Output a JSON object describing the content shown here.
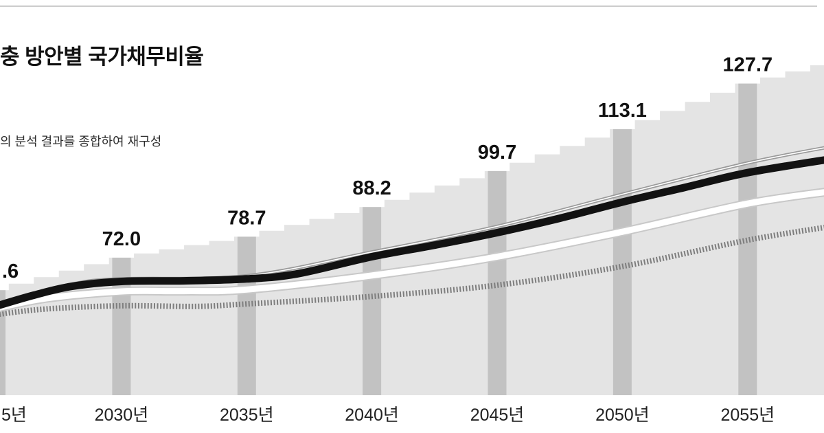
{
  "header": {
    "title": "충 방안별 국가채무비율",
    "source_note": "의 분석 결과를 종합하여 재구성"
  },
  "colors": {
    "background": "#ffffff",
    "top_rule": "#cccccc",
    "area_fill": "#e4e4e4",
    "bar_fill": "#c2c2c2",
    "line_black": "#121212",
    "line_white": "#ffffff",
    "line_white_edge": "#c8c8c8",
    "line_gray_thin": "#9a9a9a",
    "line_gray_hatched": "#7d7d7d",
    "value_label_text": "#111111",
    "axis_label_text": "#222222"
  },
  "chart_data": {
    "type": "area",
    "title": "충 방안별 국가채무비율",
    "xlabel": "",
    "ylabel": "",
    "grid": false,
    "xlim": [
      2025.15,
      2058.05
    ],
    "ylim": [
      28,
      154
    ],
    "x_tick_labels": [
      {
        "year": 2025,
        "label": "5년",
        "align": "left"
      },
      {
        "year": 2030,
        "label": "2030년"
      },
      {
        "year": 2035,
        "label": "2035년"
      },
      {
        "year": 2040,
        "label": "2040년"
      },
      {
        "year": 2045,
        "label": "2045년"
      },
      {
        "year": 2050,
        "label": "2050년"
      },
      {
        "year": 2055,
        "label": "2055년"
      }
    ],
    "value_labels": [
      {
        "year": 2025,
        "text": ".6",
        "value": 61.6,
        "align": "left"
      },
      {
        "year": 2030,
        "text": "72.0",
        "value": 72.0
      },
      {
        "year": 2035,
        "text": "78.7",
        "value": 78.7
      },
      {
        "year": 2040,
        "text": "88.2",
        "value": 88.2
      },
      {
        "year": 2045,
        "text": "99.7",
        "value": 99.7
      },
      {
        "year": 2050,
        "text": "113.1",
        "value": 113.1
      },
      {
        "year": 2055,
        "text": "127.7",
        "value": 127.7
      }
    ],
    "bars_at_years": [
      2025,
      2030,
      2035,
      2040,
      2045,
      2050,
      2055
    ],
    "series": [
      {
        "name": "stepped-area-top",
        "style": "stepped_area",
        "x": [
          2025,
          2030,
          2035,
          2040,
          2045,
          2050,
          2055,
          2059
        ],
        "values": [
          61.6,
          72.0,
          78.7,
          88.2,
          99.7,
          113.1,
          127.7,
          135.5
        ]
      },
      {
        "name": "thick-black-line",
        "style": "thick_black",
        "x": [
          2025,
          2026.5,
          2028,
          2030,
          2032.5,
          2035,
          2037,
          2040,
          2042.5,
          2045,
          2047.5,
          2050,
          2052.5,
          2055,
          2058.5
        ],
        "values": [
          56.5,
          60.0,
          62.8,
          64.4,
          64.6,
          65.2,
          66.8,
          72.3,
          76.0,
          80.0,
          84.6,
          89.8,
          94.5,
          99.2,
          103.8
        ]
      },
      {
        "name": "white-line",
        "style": "white",
        "x": [
          2025,
          2027,
          2030,
          2032.5,
          2035,
          2040,
          2045,
          2050,
          2055,
          2058.5
        ],
        "values": [
          55.8,
          59.0,
          61.2,
          61.3,
          61.8,
          66.3,
          72.3,
          80.3,
          89.3,
          93.4
        ]
      },
      {
        "name": "thin-gray-line",
        "style": "thin_gray_double",
        "x": [
          2025,
          2028,
          2030,
          2035,
          2040,
          2045,
          2050,
          2055,
          2058.5
        ],
        "values": [
          57.0,
          63.5,
          65.2,
          66.2,
          73.8,
          82.0,
          92.3,
          102.3,
          107.8
        ]
      },
      {
        "name": "hatched-gray-line",
        "style": "hatched",
        "x": [
          2025,
          2027,
          2030,
          2033,
          2035,
          2040,
          2045,
          2050,
          2055,
          2058.5
        ],
        "values": [
          53.8,
          55.6,
          56.6,
          56.4,
          57.2,
          59.6,
          63.2,
          69.2,
          77.6,
          82.2
        ]
      }
    ]
  }
}
